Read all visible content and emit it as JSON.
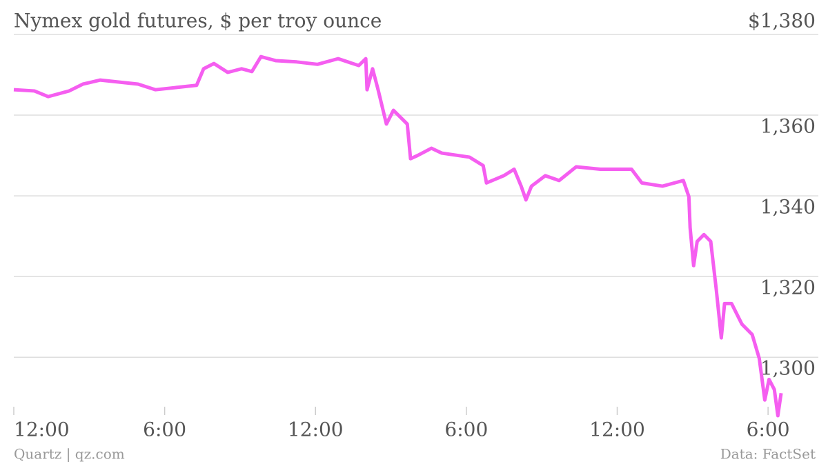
{
  "chart_data": {
    "type": "line",
    "title": "Nymex gold futures, $ per troy ounce",
    "source_left": "Quartz | qz.com",
    "source_right": "Data: FactSet",
    "xlim": [
      0,
      32
    ],
    "xticks": [
      {
        "value": 0,
        "label": "12:00"
      },
      {
        "value": 6,
        "label": "6:00"
      },
      {
        "value": 12,
        "label": "12:00"
      },
      {
        "value": 18,
        "label": "6:00"
      },
      {
        "value": 24,
        "label": "12:00"
      },
      {
        "value": 30,
        "label": "6:00"
      }
    ],
    "ylim": [
      1285,
      1380
    ],
    "yticks": [
      {
        "value": 1380,
        "label": "$1,380"
      },
      {
        "value": 1360,
        "label": "1,360"
      },
      {
        "value": 1340,
        "label": "1,340"
      },
      {
        "value": 1320,
        "label": "1,320"
      },
      {
        "value": 1300,
        "label": "1,300"
      }
    ],
    "grid": true,
    "x": [
      0,
      0.82,
      1.37,
      2.2,
      2.75,
      3.43,
      4.94,
      5.63,
      7.27,
      7.55,
      7.96,
      8.51,
      9.06,
      9.47,
      9.83,
      10.43,
      11.25,
      12.08,
      12.9,
      13.72,
      14,
      14.05,
      14.27,
      14.49,
      14.82,
      15.1,
      15.65,
      15.78,
      16.06,
      16.61,
      17.02,
      18.12,
      18.67,
      18.8,
      19.49,
      19.9,
      20.18,
      20.37,
      20.59,
      21.14,
      21.69,
      22.37,
      23.33,
      24.57,
      24.98,
      25.8,
      26.63,
      26.85,
      26.9,
      27.04,
      27.18,
      27.45,
      27.72,
      27.94,
      28.14,
      28.27,
      28.55,
      28.96,
      29.37,
      29.65,
      29.87,
      30.04,
      30.25,
      30.39,
      30.52
    ],
    "series": [
      {
        "color": "#f55ef0",
        "values": [
          1366.3,
          1366,
          1364.6,
          1366,
          1367.7,
          1368.7,
          1367.7,
          1366.3,
          1367.4,
          1371.5,
          1372.8,
          1370.6,
          1371.5,
          1370.8,
          1374.5,
          1373.5,
          1373.2,
          1372.6,
          1374,
          1372.3,
          1374,
          1366.3,
          1371.5,
          1366.3,
          1357.8,
          1361.2,
          1357.8,
          1349.2,
          1350,
          1351.8,
          1350.6,
          1349.6,
          1347.5,
          1343.2,
          1345,
          1346.6,
          1342.4,
          1339,
          1342.4,
          1345,
          1343.8,
          1347.2,
          1346.6,
          1346.6,
          1343.2,
          1342.4,
          1343.8,
          1339.8,
          1332.1,
          1322.7,
          1328.7,
          1330.4,
          1328.7,
          1316.8,
          1304.8,
          1313.3,
          1313.3,
          1308.2,
          1305.6,
          1299.7,
          1289.4,
          1294.5,
          1292,
          1285.5,
          1291.1
        ]
      }
    ]
  }
}
